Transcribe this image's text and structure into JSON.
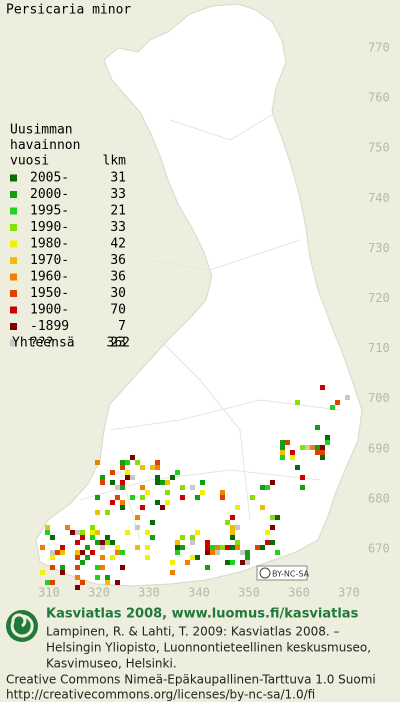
{
  "title": "Persicaria minor",
  "legend": {
    "header": [
      "Uusimman",
      "havainnon",
      "vuosi"
    ],
    "count_header": "lkm",
    "rows": [
      {
        "label": "2005-",
        "count": 31,
        "color": "#0a6a0a"
      },
      {
        "label": "2000-",
        "count": 33,
        "color": "#12a012"
      },
      {
        "label": "1995-",
        "count": 21,
        "color": "#22d022"
      },
      {
        "label": "1990-",
        "count": 33,
        "color": "#88e000"
      },
      {
        "label": "1980-",
        "count": 42,
        "color": "#f0f000"
      },
      {
        "label": "1970-",
        "count": 36,
        "color": "#f0c000"
      },
      {
        "label": "1960-",
        "count": 36,
        "color": "#f08000"
      },
      {
        "label": "1950-",
        "count": 30,
        "color": "#e04000"
      },
      {
        "label": "1900-",
        "count": 70,
        "color": "#d00000"
      },
      {
        "label": "-1899",
        "count": 7,
        "color": "#800000"
      },
      {
        "label": "???",
        "count": 23,
        "color": "#c8c8c8"
      }
    ],
    "total_label": "Yhteensä",
    "total": 362
  },
  "map": {
    "y_labels": [
      770,
      760,
      750,
      740,
      730,
      720,
      710,
      700,
      690,
      680,
      670
    ],
    "x_labels": [
      310,
      320,
      330,
      340,
      350,
      360,
      370
    ],
    "badge": "BY-NC-SA"
  },
  "footer": {
    "title": "Kasviatlas 2008, www.luomus.fi/kasviatlas",
    "citation": [
      "Lampinen, R. & Lahti, T. 2009: Kasviatlas 2008. –",
      "Helsingin Yliopisto, Luonnontieteellinen keskusmuseo,",
      "Kasvimuseo, Helsinki."
    ],
    "license": [
      "Creative Commons Nimeä-Epäkaupallinen-Tarttuva 1.0 Suomi",
      "http://creativecommons.org/licenses/by-nc-sa/1.0/fi"
    ]
  }
}
